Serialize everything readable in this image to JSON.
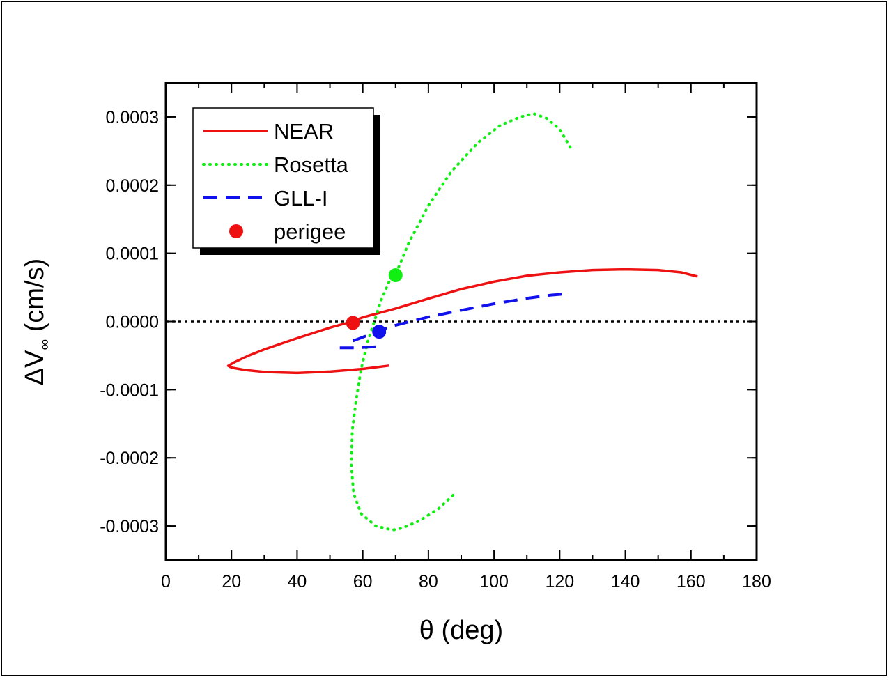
{
  "chart_data": {
    "type": "line",
    "title": "",
    "xlabel": "θ (deg)",
    "ylabel_main": "ΔV",
    "ylabel_sub": "∞",
    "ylabel_unit": " (cm/s)",
    "xlim": [
      0,
      180
    ],
    "ylim": [
      -0.00035,
      0.00035
    ],
    "x_ticks": [
      0,
      20,
      40,
      60,
      80,
      100,
      120,
      140,
      160,
      180
    ],
    "x_tick_labels": [
      "0",
      "20",
      "40",
      "60",
      "80",
      "100",
      "120",
      "140",
      "160",
      "180"
    ],
    "y_ticks": [
      0.0003,
      0.0002,
      0.0001,
      0.0,
      -0.0001,
      -0.0002,
      -0.0003
    ],
    "y_tick_labels": [
      "0.0003",
      "0.0002",
      "0.0001",
      "0.0000",
      "-0.0001",
      "-0.0002",
      "-0.0003"
    ],
    "grid": false,
    "legend_position": "top-left",
    "reference_line": {
      "y": 0,
      "style": "dotted",
      "color": "#000000"
    },
    "series": [
      {
        "name": "NEAR",
        "style": "solid",
        "color": "#ee1111",
        "points": [
          [
            68,
            -6.47e-05
          ],
          [
            60,
            -6.95e-05
          ],
          [
            50,
            -7.35e-05
          ],
          [
            40,
            -7.55e-05
          ],
          [
            30,
            -7.4e-05
          ],
          [
            24,
            -7.1e-05
          ],
          [
            20,
            -6.75e-05
          ],
          [
            19,
            -6.5e-05
          ],
          [
            21,
            -5.95e-05
          ],
          [
            25,
            -5.05e-05
          ],
          [
            30,
            -4.1e-05
          ],
          [
            40,
            -2.45e-05
          ],
          [
            50,
            -9e-06
          ],
          [
            56,
            -1e-06
          ],
          [
            60,
            6e-06
          ],
          [
            70,
            1.9e-05
          ],
          [
            80,
            3.35e-05
          ],
          [
            90,
            4.75e-05
          ],
          [
            100,
            5.85e-05
          ],
          [
            110,
            6.7e-05
          ],
          [
            120,
            7.2e-05
          ],
          [
            130,
            7.55e-05
          ],
          [
            140,
            7.65e-05
          ],
          [
            150,
            7.55e-05
          ],
          [
            157,
            7.2e-05
          ],
          [
            162,
            6.6e-05
          ]
        ]
      },
      {
        "name": "Rosetta",
        "style": "dotted",
        "color": "#11ee11",
        "points": [
          [
            87.5,
            -0.000255
          ],
          [
            83,
            -0.000275
          ],
          [
            77,
            -0.000293
          ],
          [
            72,
            -0.000303
          ],
          [
            69,
            -0.000306
          ],
          [
            64,
            -0.0003
          ],
          [
            59.5,
            -0.000282
          ],
          [
            57.2,
            -0.000252
          ],
          [
            56.5,
            -0.00021
          ],
          [
            56.8,
            -0.00016
          ],
          [
            58,
            -0.000115
          ],
          [
            59.5,
            -7e-05
          ],
          [
            61.5,
            -3e-05
          ],
          [
            63.5,
            0.0
          ],
          [
            65.5,
            3e-05
          ],
          [
            68,
            5.8e-05
          ],
          [
            70,
            6.9e-05
          ],
          [
            74,
            0.000115
          ],
          [
            80,
            0.00017
          ],
          [
            87,
            0.00022
          ],
          [
            95,
            0.000262
          ],
          [
            102,
            0.000288
          ],
          [
            108,
            0.0003
          ],
          [
            112,
            0.000305
          ],
          [
            116,
            0.000298
          ],
          [
            120,
            0.000282
          ],
          [
            124,
            0.000249
          ]
        ]
      },
      {
        "name": "GLL-I",
        "style": "dashed",
        "color": "#1111ee",
        "points": [
          [
            53,
            -3.85e-05
          ],
          [
            58,
            -3.85e-05
          ],
          [
            66,
            -3.65e-05
          ],
          null,
          [
            57,
            -2.85e-05
          ],
          [
            60,
            -2.3e-05
          ],
          [
            65,
            -1.4e-05
          ],
          [
            70,
            -5.5e-06
          ],
          [
            80,
            6.5e-06
          ],
          [
            90,
            1.65e-05
          ],
          [
            100,
            2.6e-05
          ],
          [
            110,
            3.4e-05
          ],
          [
            117,
            3.85e-05
          ],
          [
            123,
            4.1e-05
          ]
        ]
      }
    ],
    "perigee_points": [
      {
        "series": "NEAR",
        "x": 57,
        "y": -2e-06,
        "color": "#ee1111"
      },
      {
        "series": "Rosetta",
        "x": 70,
        "y": 6.8e-05,
        "color": "#11ee11"
      },
      {
        "series": "GLL-I",
        "x": 65,
        "y": -1.5e-05,
        "color": "#1111ee"
      }
    ],
    "legend": [
      {
        "label": "NEAR",
        "kind": "line",
        "style": "solid",
        "color": "#ee1111"
      },
      {
        "label": "Rosetta",
        "kind": "line",
        "style": "dotted",
        "color": "#11ee11"
      },
      {
        "label": "GLL-I",
        "kind": "line",
        "style": "dashed",
        "color": "#1111ee"
      },
      {
        "label": "perigee",
        "kind": "marker",
        "style": "circle",
        "color": "#ee1111"
      }
    ]
  }
}
